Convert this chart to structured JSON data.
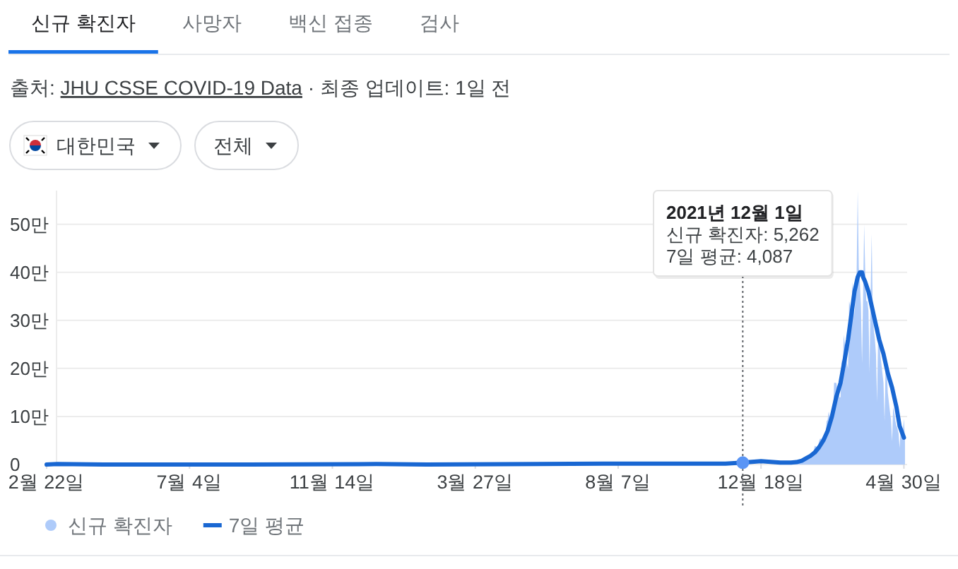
{
  "chart_data": {
    "type": "area",
    "series": [
      {
        "name": "신규 확진자",
        "color": "#aecbfa",
        "x": [
          "2022-01-15",
          "2022-01-16",
          "2022-01-17",
          "2022-01-18",
          "2022-01-19",
          "2022-01-20",
          "2022-01-21",
          "2022-01-22",
          "2022-01-23",
          "2022-01-24",
          "2022-01-25",
          "2022-01-26",
          "2022-01-27",
          "2022-01-28",
          "2022-01-29",
          "2022-01-30",
          "2022-01-31",
          "2022-02-01",
          "2022-02-02",
          "2022-02-03",
          "2022-02-04",
          "2022-02-05",
          "2022-02-06",
          "2022-02-07",
          "2022-02-08",
          "2022-02-09",
          "2022-02-10",
          "2022-02-11",
          "2022-02-12",
          "2022-02-13",
          "2022-02-14",
          "2022-02-15",
          "2022-02-16",
          "2022-02-17",
          "2022-02-18",
          "2022-02-19",
          "2022-02-20",
          "2022-02-21",
          "2022-02-22",
          "2022-02-23",
          "2022-02-24",
          "2022-02-25",
          "2022-02-26",
          "2022-02-27",
          "2022-02-28",
          "2022-03-01",
          "2022-03-02",
          "2022-03-03",
          "2022-03-04",
          "2022-03-05",
          "2022-03-06",
          "2022-03-07",
          "2022-03-08",
          "2022-03-09",
          "2022-03-10",
          "2022-03-11",
          "2022-03-12",
          "2022-03-13",
          "2022-03-14",
          "2022-03-15",
          "2022-03-16",
          "2022-03-17",
          "2022-03-18",
          "2022-03-19",
          "2022-03-20",
          "2022-03-21",
          "2022-03-22",
          "2022-03-23",
          "2022-03-24",
          "2022-03-25",
          "2022-03-26",
          "2022-03-27",
          "2022-03-28",
          "2022-03-29",
          "2022-03-30",
          "2022-03-31",
          "2022-04-01",
          "2022-04-02",
          "2022-04-03",
          "2022-04-04",
          "2022-04-05",
          "2022-04-06",
          "2022-04-07",
          "2022-04-08",
          "2022-04-09",
          "2022-04-10",
          "2022-04-11",
          "2022-04-12",
          "2022-04-13",
          "2022-04-14",
          "2022-04-15",
          "2022-04-16",
          "2022-04-17",
          "2022-04-18",
          "2022-04-19",
          "2022-04-20",
          "2022-04-21",
          "2022-04-22",
          "2022-04-23",
          "2022-04-24",
          "2022-04-25",
          "2022-04-26",
          "2022-04-27",
          "2022-04-28",
          "2022-04-29",
          "2022-04-30",
          "2022-05-01"
        ],
        "values": [
          0.4,
          0.4,
          0.4,
          0.3,
          0.4,
          0.5,
          0.7,
          0.7,
          0.7,
          0.7,
          0.8,
          0.8,
          1.3,
          1.5,
          1.6,
          1.8,
          1.7,
          1.8,
          2,
          2,
          2.3,
          2.8,
          3.9,
          3.8,
          3.5,
          3.7,
          4.9,
          5.4,
          5.3,
          5.6,
          5.3,
          5.4,
          5.7,
          9,
          9.3,
          11,
          10,
          9.5,
          10,
          10,
          17,
          17,
          17,
          16,
          16,
          14,
          14,
          22,
          20,
          27,
          25,
          24,
          21,
          20,
          34,
          33,
          28,
          38,
          35,
          31,
          36,
          40,
          57,
          41,
          38,
          33,
          21,
          35,
          50,
          40,
          34,
          34,
          32,
          19,
          35,
          48,
          32,
          28,
          26,
          23,
          13,
          27,
          29,
          23,
          21,
          19,
          17,
          9,
          21,
          20,
          15,
          13,
          11,
          9.3,
          4.8,
          12,
          11,
          9.1,
          8.1,
          7.5,
          6.5,
          3.4,
          7.7,
          7.7,
          6.9,
          9.5,
          5
        ]
      },
      {
        "name": "7일 평균",
        "type": "line",
        "color": "#1967d2",
        "x": [
          "2020-02-22",
          "2020-03-03",
          "2020-04-15",
          "2020-08-28",
          "2020-12-25",
          "2021-02-10",
          "2021-07-25",
          "2021-10-15",
          "2021-11-15",
          "2021-12-01",
          "2021-12-18",
          "2022-01-05",
          "2022-01-15",
          "2022-01-20",
          "2022-01-25",
          "2022-01-29",
          "2022-02-02",
          "2022-02-06",
          "2022-02-10",
          "2022-02-14",
          "2022-02-18",
          "2022-02-22",
          "2022-02-26",
          "2022-03-02",
          "2022-03-06",
          "2022-03-09",
          "2022-03-12",
          "2022-03-15",
          "2022-03-18",
          "2022-03-20",
          "2022-03-22",
          "2022-03-23",
          "2022-03-25",
          "2022-03-28",
          "2022-03-31",
          "2022-04-03",
          "2022-04-07",
          "2022-04-11",
          "2022-04-15",
          "2022-04-19",
          "2022-04-23",
          "2022-04-26",
          "2022-04-30"
        ],
        "values": [
          0,
          0.1,
          0,
          0,
          0.1,
          0,
          0.2,
          0.2,
          0.2,
          0.4,
          0.7,
          0.4,
          0.4,
          0.5,
          0.8,
          1.3,
          1.8,
          2.5,
          3.6,
          5,
          7,
          10,
          14,
          17,
          22,
          26,
          31,
          36,
          39,
          40,
          40,
          39,
          38,
          36,
          33,
          30,
          26,
          23,
          19,
          16,
          12,
          8,
          5.6
        ]
      },
      {
        "type": "scatter",
        "color": "#5a95f5",
        "marker": "circle",
        "x": [
          "2021-12-01"
        ],
        "values": [
          0.4
        ]
      }
    ],
    "xlim": [
      "2020-02-22",
      "2022-05-03"
    ],
    "xticks": [
      {
        "value": "2020-02-22",
        "label": "2월 22일"
      },
      {
        "value": "2020-07-04",
        "label": "7월 4일"
      },
      {
        "value": "2020-11-14",
        "label": "11월 14일"
      },
      {
        "value": "2021-03-27",
        "label": "3월 27일"
      },
      {
        "value": "2021-08-07",
        "label": "8월 7일"
      },
      {
        "value": "2021-12-18",
        "label": "12월 18일"
      },
      {
        "value": "2022-04-30",
        "label": "4월 30일"
      }
    ],
    "ylim": [
      0,
      57
    ],
    "yticks": [
      0,
      {
        "value": 10,
        "label": "10만"
      },
      {
        "value": 20,
        "label": "20만"
      },
      {
        "value": 30,
        "label": "30만"
      },
      {
        "value": 40,
        "label": "40만"
      },
      {
        "value": 50,
        "label": "50만"
      }
    ],
    "grid": "y",
    "legend": "bottom",
    "ref_lines": [
      {
        "axis": "x",
        "value": "2021-12-01",
        "line_style": "dotted",
        "color": "#5f6368"
      }
    ],
    "annotations": [
      "신규 확진자",
      "사망자",
      "백신 접종",
      "검사",
      "출처: JHU CSSE COVID-19 Data · 최종 업데이트: 1일 전",
      "대한민국",
      "전체",
      "2021년 12월 1일\n신규 확진자: 5,262\n7일 평균: 4,087"
    ]
  }
}
